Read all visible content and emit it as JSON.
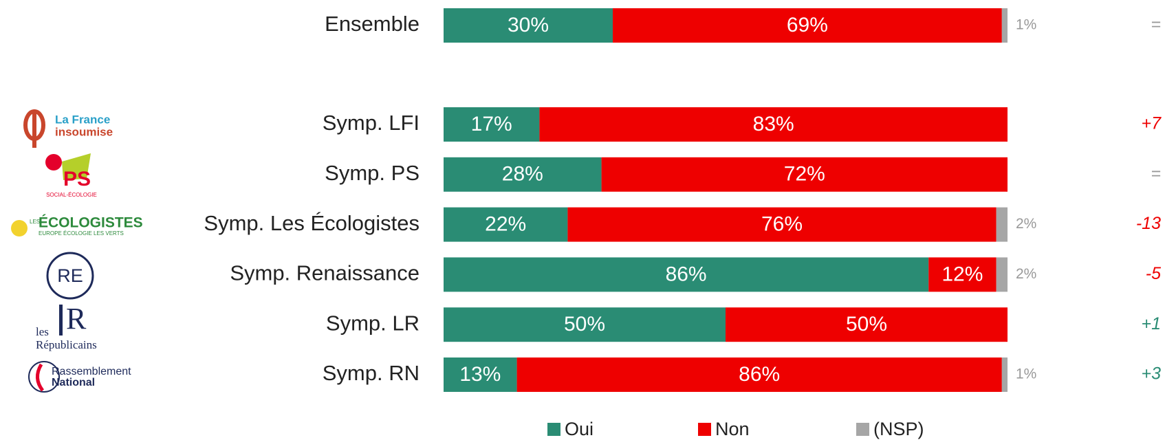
{
  "chart_data": {
    "type": "stacked_bar_horizontal",
    "categories": [
      "Ensemble",
      "Symp. LFI",
      "Symp. PS",
      "Symp. Les Écologistes",
      "Symp. Renaissance",
      "Symp. LR",
      "Symp. RN"
    ],
    "series": [
      {
        "name": "Oui",
        "color": "#2a8c74",
        "values": [
          30,
          17,
          28,
          22,
          86,
          50,
          13
        ],
        "value_labels": [
          "30%",
          "17%",
          "28%",
          "22%",
          "86%",
          "50%",
          "13%"
        ]
      },
      {
        "name": "Non",
        "color": "#ee0000",
        "values": [
          69,
          83,
          72,
          76,
          12,
          50,
          86
        ],
        "value_labels": [
          "69%",
          "83%",
          "72%",
          "76%",
          "12%",
          "50%",
          "86%"
        ]
      },
      {
        "name": "(NSP)",
        "color": "#a6a6a6",
        "values": [
          1,
          null,
          null,
          2,
          2,
          null,
          1
        ],
        "value_labels": [
          "1%",
          null,
          null,
          "2%",
          "2%",
          null,
          "1%"
        ]
      }
    ],
    "xlim": [
      0,
      100
    ],
    "changes": [
      "=",
      "+7",
      "=",
      "-13",
      "-5",
      "+1",
      "+3"
    ],
    "change_colors": [
      "#999999",
      "#ee0000",
      "#999999",
      "#ee0000",
      "#ee0000",
      "#2a8c74",
      "#2a8c74"
    ],
    "legend": "bottom"
  },
  "logos": [
    [
      "La France",
      "insoumise"
    ],
    [
      "PS",
      "SOCIAL-ÉCOLOGIE"
    ],
    [
      "LES",
      "ÉCOLOGISTES",
      "EUROPE ÉCOLOGIE LES VERTS"
    ],
    [
      "RE"
    ],
    [
      "les",
      "R",
      "Républicains"
    ],
    [
      "Rassemblement",
      "National"
    ]
  ]
}
